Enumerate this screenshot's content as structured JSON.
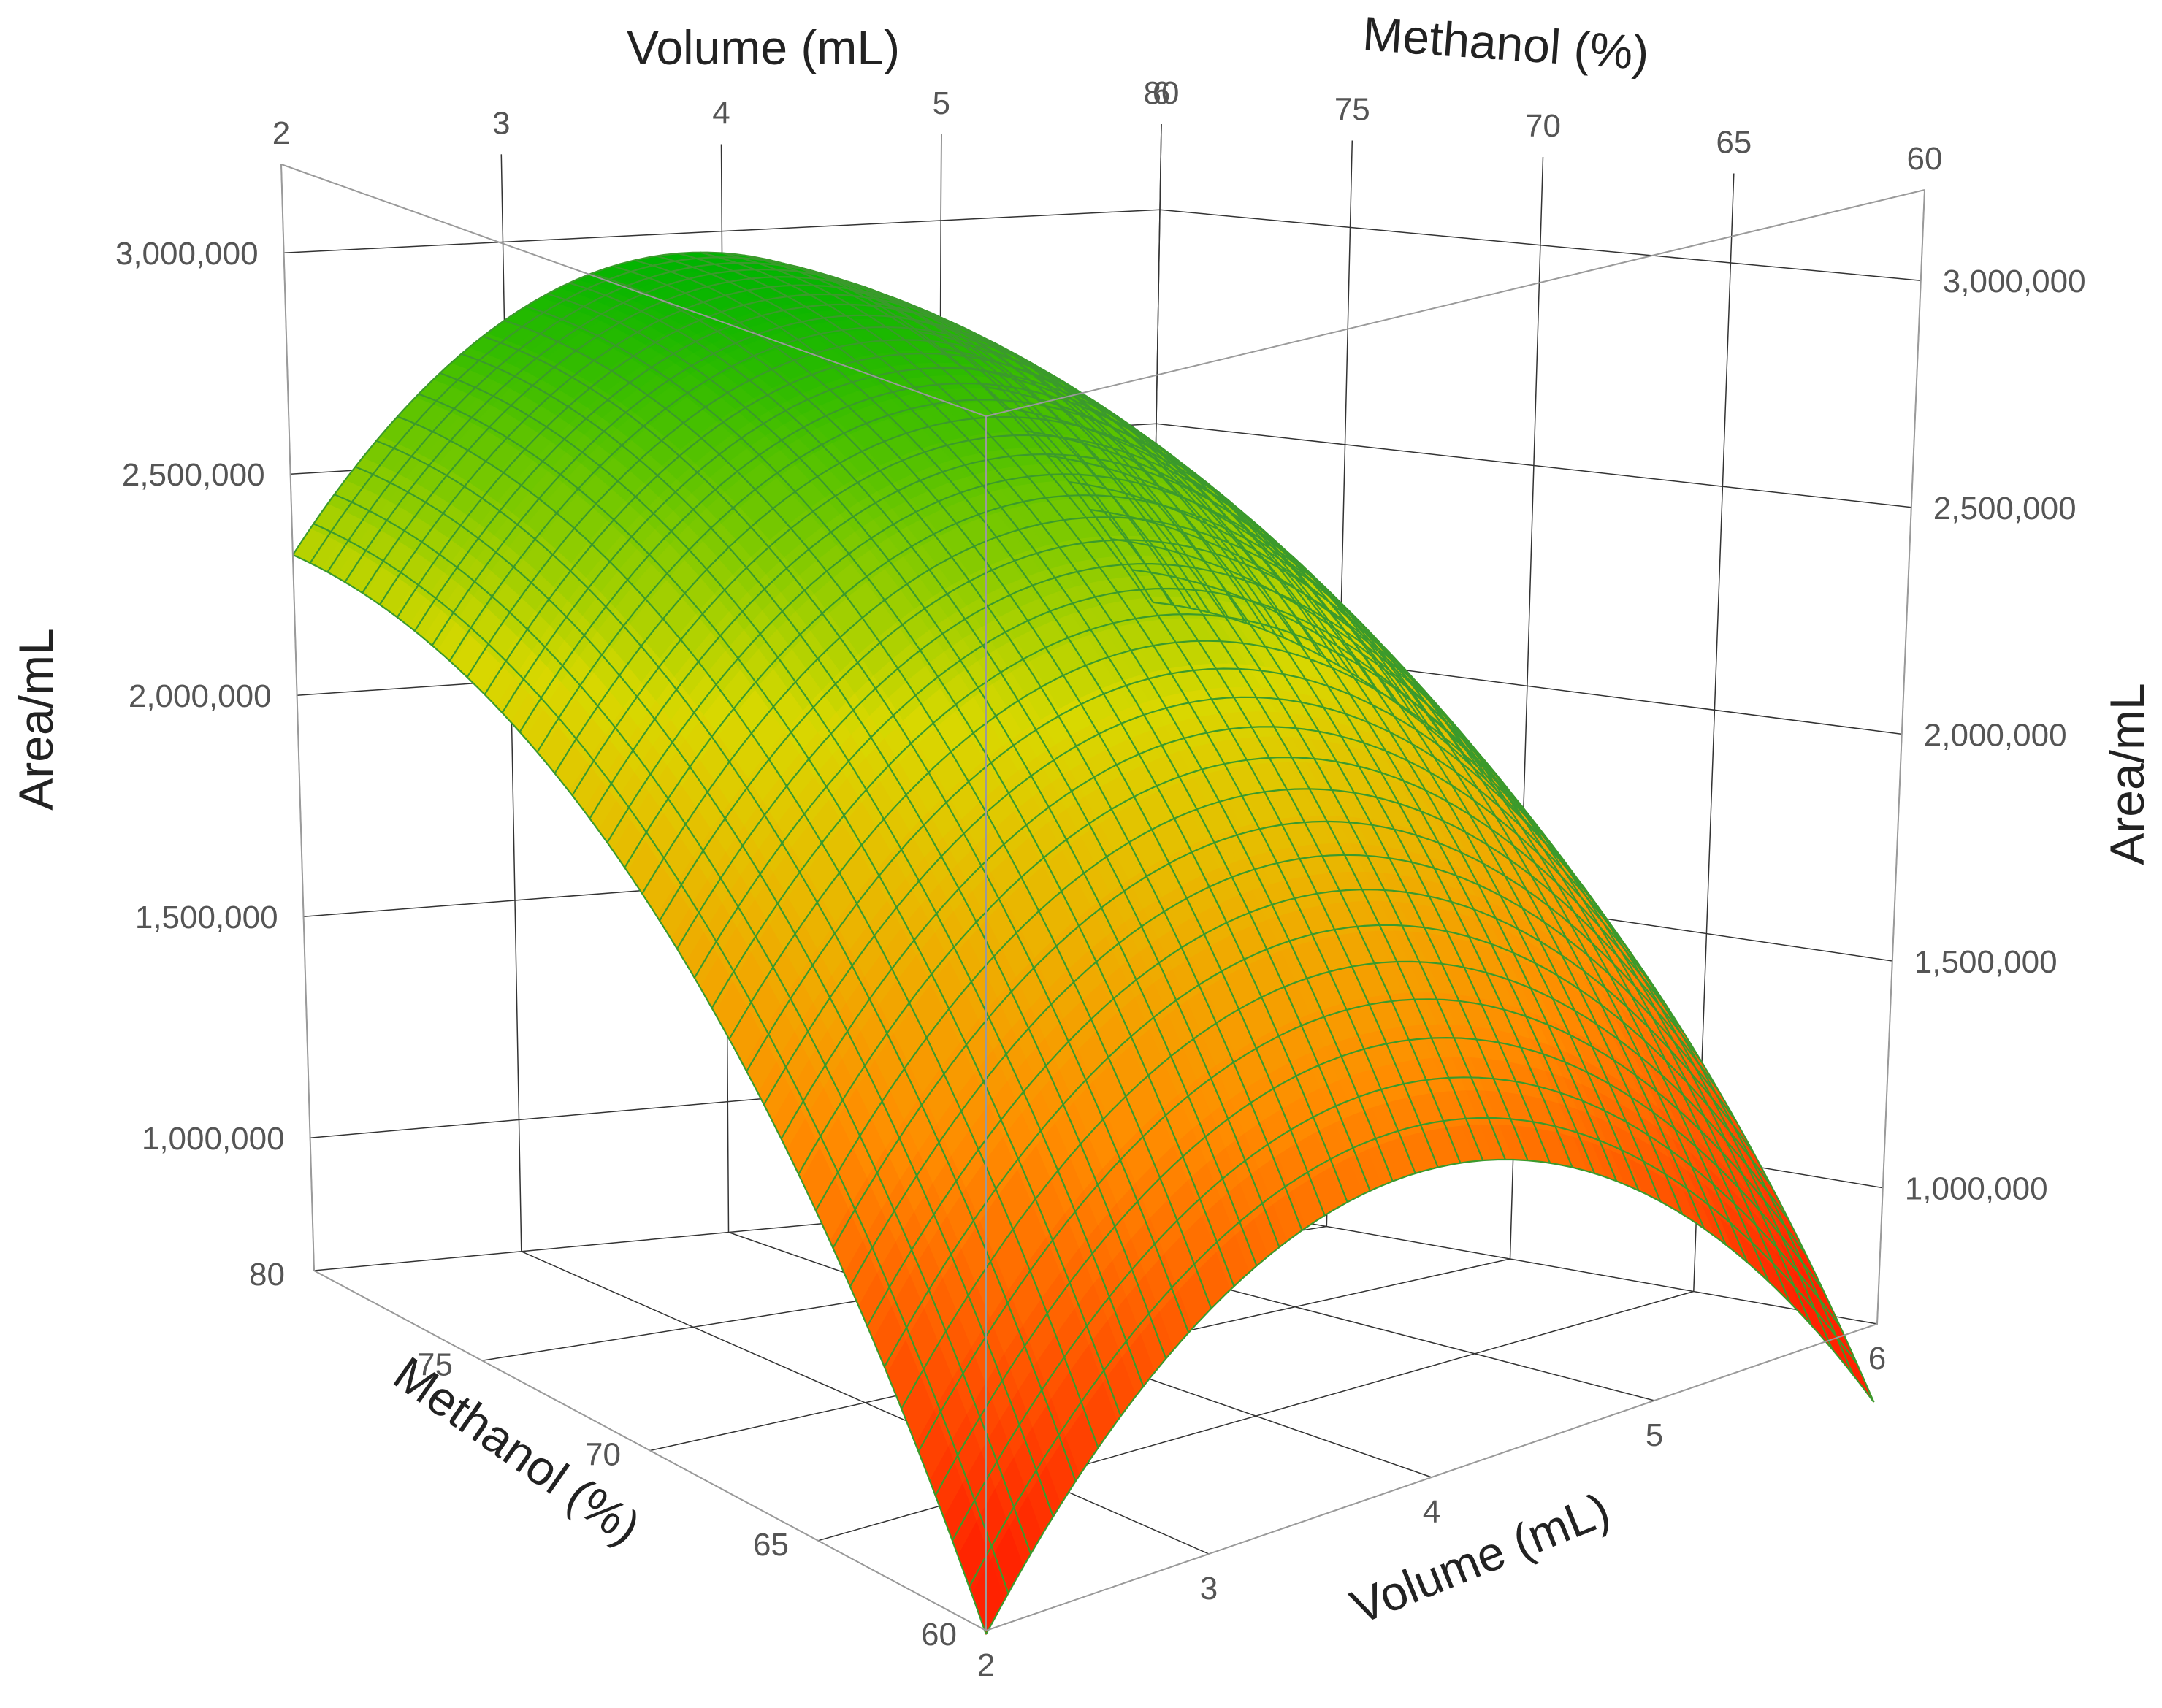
{
  "chart_data": {
    "type": "surface",
    "x_axis": {
      "label": "Volume (mL)",
      "range": [
        2,
        6
      ],
      "ticks": [
        "2",
        "3",
        "4",
        "5",
        "6"
      ]
    },
    "y_axis": {
      "label": "Methanol (%)",
      "range": [
        60,
        80
      ],
      "ticks": [
        "60",
        "65",
        "70",
        "75",
        "80"
      ]
    },
    "z_axis": {
      "label": "Area/mL",
      "range": [
        700000,
        3200000
      ],
      "ticks": [
        "1,000,000",
        "1,500,000",
        "2,000,000",
        "2,500,000",
        "3,000,000"
      ],
      "tick_values": [
        1000000,
        1500000,
        2000000,
        2500000,
        3000000
      ]
    },
    "surface_samples": {
      "volume_mL": [
        2,
        4,
        6,
        2,
        4,
        6,
        2,
        4,
        6
      ],
      "methanol_pct": [
        60,
        60,
        60,
        70,
        70,
        70,
        80,
        80,
        80
      ],
      "area_per_mL": [
        800000,
        1360000,
        700000,
        1900000,
        2550000,
        1700000,
        2050000,
        2950000,
        1880000
      ]
    },
    "colorscale": [
      "#ff2200",
      "#ff8c00",
      "#d8d800",
      "#00b400"
    ],
    "grid": true
  }
}
